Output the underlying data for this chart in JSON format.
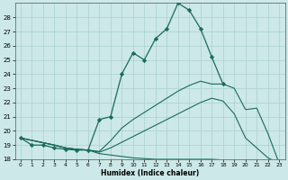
{
  "xlabel": "Humidex (Indice chaleur)",
  "bg_color": "#cce8e8",
  "grid_color": "#aad0d0",
  "line_color": "#1a6b5a",
  "xlim": [
    -0.5,
    23.5
  ],
  "ylim": [
    18,
    29
  ],
  "yticks": [
    18,
    19,
    20,
    21,
    22,
    23,
    24,
    25,
    26,
    27,
    28
  ],
  "xticks": [
    0,
    1,
    2,
    3,
    4,
    5,
    6,
    7,
    8,
    9,
    10,
    11,
    12,
    13,
    14,
    15,
    16,
    17,
    18,
    19,
    20,
    21,
    22,
    23
  ],
  "line1_x": [
    0,
    1,
    2,
    3,
    4,
    5,
    6,
    7,
    8,
    9,
    10,
    11,
    12,
    13,
    14,
    15,
    16,
    17,
    18
  ],
  "line1_y": [
    19.5,
    19.0,
    19.0,
    18.8,
    18.7,
    18.65,
    18.65,
    20.8,
    21.0,
    24.0,
    25.5,
    25.0,
    26.5,
    27.2,
    29.0,
    28.5,
    27.2,
    25.2,
    23.3
  ],
  "line2_x": [
    0,
    3,
    4,
    5,
    6,
    7,
    8,
    9,
    10,
    11,
    12,
    13,
    14,
    15,
    16,
    17,
    18,
    19,
    20,
    21,
    22,
    23
  ],
  "line2_y": [
    19.5,
    19.0,
    18.8,
    18.7,
    18.65,
    18.55,
    19.3,
    20.2,
    20.8,
    21.3,
    21.8,
    22.3,
    22.8,
    23.2,
    23.5,
    23.3,
    23.3,
    23.0,
    21.5,
    21.6,
    19.8,
    17.7
  ],
  "line3_x": [
    0,
    3,
    4,
    5,
    6,
    7,
    8,
    9,
    10,
    11,
    12,
    13,
    14,
    15,
    16,
    17,
    18,
    19,
    20,
    21,
    22,
    23
  ],
  "line3_y": [
    19.5,
    19.0,
    18.8,
    18.7,
    18.65,
    18.5,
    18.8,
    19.2,
    19.6,
    20.0,
    20.4,
    20.8,
    21.2,
    21.6,
    22.0,
    22.3,
    22.1,
    21.2,
    19.5,
    18.8,
    18.1,
    17.7
  ],
  "line4_x": [
    0,
    3,
    4,
    5,
    6,
    7,
    8,
    9,
    10,
    11,
    12,
    13,
    14,
    15,
    16,
    17,
    18,
    19,
    20,
    21,
    22,
    23
  ],
  "line4_y": [
    19.5,
    19.0,
    18.8,
    18.7,
    18.65,
    18.4,
    18.3,
    18.2,
    18.1,
    18.05,
    18.0,
    18.0,
    18.0,
    18.0,
    18.0,
    18.0,
    17.95,
    17.9,
    17.85,
    17.8,
    17.75,
    17.65
  ]
}
